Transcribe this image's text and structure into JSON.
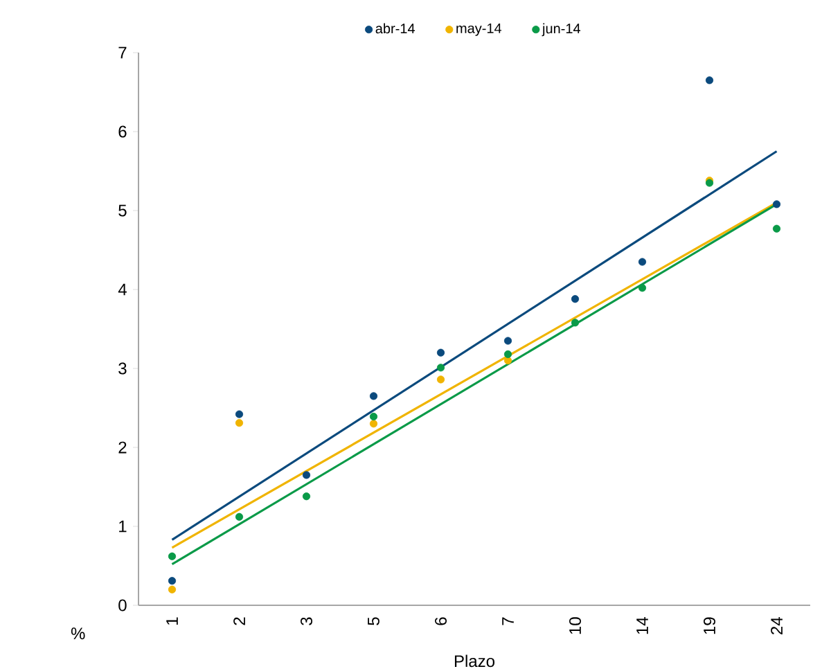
{
  "chart_data": {
    "type": "scatter",
    "xlabel": "Plazo",
    "ylabel": "%",
    "categories": [
      "1",
      "2",
      "3",
      "5",
      "6",
      "7",
      "10",
      "14",
      "19",
      "24"
    ],
    "ylim": [
      0,
      7
    ],
    "yticks": [
      0,
      1,
      2,
      3,
      4,
      5,
      6,
      7
    ],
    "grid": false,
    "legend": "top",
    "series": [
      {
        "name": "abr-14",
        "marker": "circle",
        "color": "#0b4a7d",
        "values": [
          0.31,
          2.42,
          1.65,
          2.65,
          3.2,
          3.35,
          3.88,
          4.35,
          6.65,
          5.08
        ]
      },
      {
        "name": "may-14",
        "marker": "circle",
        "color": "#f0b400",
        "values": [
          0.2,
          2.31,
          null,
          2.3,
          2.86,
          3.1,
          null,
          null,
          5.38,
          null
        ]
      },
      {
        "name": "jun-14",
        "marker": "circle",
        "color": "#0a9a48",
        "values": [
          0.62,
          1.12,
          1.38,
          2.39,
          3.01,
          3.18,
          3.58,
          4.02,
          5.35,
          4.77
        ]
      },
      {
        "type": "line",
        "marker": "none",
        "color": "#0b4a7d",
        "x": [
          "1",
          "24"
        ],
        "values": [
          0.83,
          5.75
        ]
      },
      {
        "type": "line",
        "marker": "none",
        "color": "#f0b400",
        "x": [
          "1",
          "24"
        ],
        "values": [
          0.73,
          5.1
        ]
      },
      {
        "type": "line",
        "marker": "none",
        "color": "#0a9a48",
        "x": [
          "1",
          "24"
        ],
        "values": [
          0.52,
          5.08
        ]
      }
    ]
  }
}
